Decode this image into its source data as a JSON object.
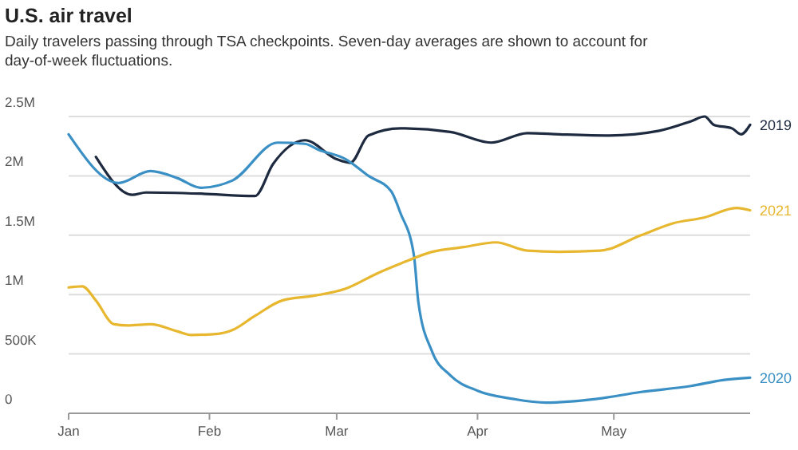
{
  "chart_data": {
    "type": "line",
    "title": "U.S. air travel",
    "subtitle": "Daily travelers passing through TSA checkpoints. Seven-day averages are shown to account for day-of-week fluctuations.",
    "series": [
      {
        "name": "2019",
        "color": "#1d2a3f",
        "x": [
          "--01-07",
          "--01-15",
          "--01-18",
          "--01-30",
          "--02-11",
          "--02-15",
          "--02-22",
          "--03-01",
          "--03-04",
          "--03-08",
          "--03-15",
          "--03-26",
          "--04-04",
          "--04-12",
          "--04-19",
          "--04-30",
          "--05-11",
          "--05-18",
          "--05-21",
          "--05-23",
          "--05-27",
          "--05-29",
          "--05-31"
        ],
        "values": [
          2160000,
          1840000,
          1860000,
          1850000,
          1830000,
          2100000,
          2300000,
          2140000,
          2110000,
          2340000,
          2400000,
          2370000,
          2280000,
          2360000,
          2350000,
          2340000,
          2380000,
          2460000,
          2500000,
          2430000,
          2400000,
          2350000,
          2430000
        ]
      },
      {
        "name": "2020",
        "color": "#3a8fc4",
        "x": [
          "--01-01",
          "--01-12",
          "--01-19",
          "--01-25",
          "--01-30",
          "--02-06",
          "--02-16",
          "--02-22",
          "--02-25",
          "--03-03",
          "--03-08",
          "--03-13",
          "--03-15",
          "--03-18",
          "--03-19",
          "--03-22",
          "--03-26",
          "--04-01",
          "--04-09",
          "--04-16",
          "--04-27",
          "--05-07",
          "--05-18",
          "--05-25",
          "--05-31"
        ],
        "values": [
          2350000,
          1940000,
          2040000,
          1980000,
          1900000,
          1960000,
          2280000,
          2270000,
          2220000,
          2140000,
          2000000,
          1870000,
          1690000,
          1330000,
          930000,
          520000,
          320000,
          190000,
          120000,
          90000,
          120000,
          180000,
          230000,
          280000,
          300000
        ]
      },
      {
        "name": "2021",
        "color": "#e8b730",
        "x": [
          "--01-01",
          "--01-04",
          "--01-07",
          "--01-11",
          "--01-14",
          "--01-19",
          "--01-25",
          "--01-28",
          "--02-03",
          "--02-06",
          "--02-11",
          "--02-17",
          "--02-24",
          "--03-03",
          "--03-10",
          "--03-15",
          "--03-22",
          "--03-29",
          "--04-05",
          "--04-12",
          "--04-19",
          "--04-28",
          "--05-07",
          "--05-14",
          "--05-21",
          "--05-28",
          "--05-31"
        ],
        "values": [
          1060000,
          1070000,
          950000,
          750000,
          740000,
          750000,
          690000,
          660000,
          670000,
          700000,
          820000,
          950000,
          990000,
          1050000,
          1180000,
          1260000,
          1360000,
          1400000,
          1440000,
          1370000,
          1360000,
          1370000,
          1500000,
          1600000,
          1650000,
          1730000,
          1710000
        ]
      }
    ],
    "xlim": [
      "--01-01",
      "--05-31"
    ],
    "xticks": [
      {
        "value": "--01-01",
        "label": "Jan"
      },
      {
        "value": "--02-01",
        "label": "Feb"
      },
      {
        "value": "--03-01",
        "label": "Mar"
      },
      {
        "value": "--04-01",
        "label": "Apr"
      },
      {
        "value": "--05-01",
        "label": "May"
      }
    ],
    "ylim": [
      0,
      2500000
    ],
    "yticks": [
      {
        "value": 0,
        "label": "0"
      },
      {
        "value": 500000,
        "label": "500K"
      },
      {
        "value": 1000000,
        "label": "1M"
      },
      {
        "value": 1500000,
        "label": "1.5M"
      },
      {
        "value": 2000000,
        "label": "2M"
      },
      {
        "value": 2500000,
        "label": "2.5M"
      }
    ],
    "grid": "y",
    "marker": "none",
    "line_style": "solid"
  }
}
